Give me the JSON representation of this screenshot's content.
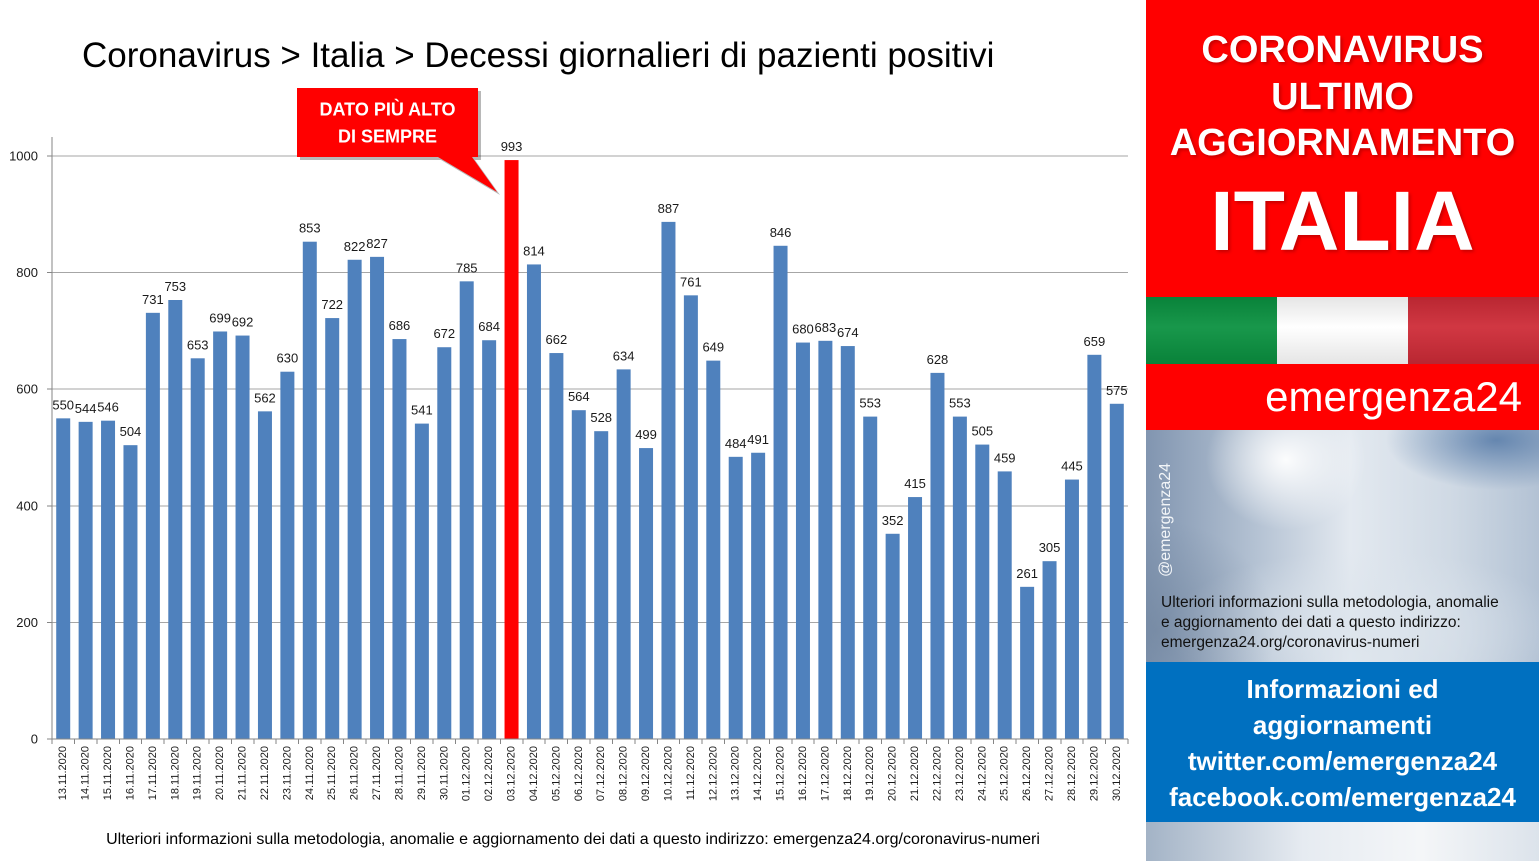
{
  "chart_data": {
    "type": "bar",
    "title": "Coronavirus > Italia > Decessi giornalieri di pazienti positivi",
    "xlabel": "",
    "ylabel": "",
    "categories": [
      "13.11.2020",
      "14.11.2020",
      "15.11.2020",
      "16.11.2020",
      "17.11.2020",
      "18.11.2020",
      "19.11.2020",
      "20.11.2020",
      "21.11.2020",
      "22.11.2020",
      "23.11.2020",
      "24.11.2020",
      "25.11.2020",
      "26.11.2020",
      "27.11.2020",
      "28.11.2020",
      "29.11.2020",
      "30.11.2020",
      "01.12.2020",
      "02.12.2020",
      "03.12.2020",
      "04.12.2020",
      "05.12.2020",
      "06.12.2020",
      "07.12.2020",
      "08.12.2020",
      "09.12.2020",
      "10.12.2020",
      "11.12.2020",
      "12.12.2020",
      "13.12.2020",
      "14.12.2020",
      "15.12.2020",
      "16.12.2020",
      "17.12.2020",
      "18.12.2020",
      "19.12.2020",
      "20.12.2020",
      "21.12.2020",
      "22.12.2020",
      "23.12.2020",
      "24.12.2020",
      "25.12.2020",
      "26.12.2020",
      "27.12.2020",
      "28.12.2020",
      "29.12.2020",
      "30.12.2020"
    ],
    "values": [
      550,
      544,
      546,
      504,
      731,
      753,
      653,
      699,
      692,
      562,
      630,
      853,
      722,
      822,
      827,
      686,
      541,
      672,
      785,
      684,
      993,
      814,
      662,
      564,
      528,
      634,
      499,
      887,
      761,
      649,
      484,
      491,
      846,
      680,
      683,
      674,
      553,
      352,
      415,
      628,
      553,
      505,
      459,
      261,
      305,
      445,
      659,
      575
    ],
    "bar_colors": [
      "#4F81BD",
      "#4F81BD",
      "#4F81BD",
      "#4F81BD",
      "#4F81BD",
      "#4F81BD",
      "#4F81BD",
      "#4F81BD",
      "#4F81BD",
      "#4F81BD",
      "#4F81BD",
      "#4F81BD",
      "#4F81BD",
      "#4F81BD",
      "#4F81BD",
      "#4F81BD",
      "#4F81BD",
      "#4F81BD",
      "#4F81BD",
      "#4F81BD",
      "#FF0000",
      "#4F81BD",
      "#4F81BD",
      "#4F81BD",
      "#4F81BD",
      "#4F81BD",
      "#4F81BD",
      "#4F81BD",
      "#4F81BD",
      "#4F81BD",
      "#4F81BD",
      "#4F81BD",
      "#4F81BD",
      "#4F81BD",
      "#4F81BD",
      "#4F81BD",
      "#4F81BD",
      "#4F81BD",
      "#4F81BD",
      "#4F81BD",
      "#4F81BD",
      "#4F81BD",
      "#4F81BD",
      "#4F81BD",
      "#4F81BD",
      "#4F81BD",
      "#4F81BD",
      "#4F81BD"
    ],
    "ylim": [
      0,
      1000
    ],
    "yticks": [
      0,
      200,
      400,
      600,
      800,
      1000
    ],
    "grid": true,
    "data_labels": true,
    "annotation": {
      "lines": [
        "DATO PIÙ ALTO",
        "DI SEMPRE"
      ],
      "color": "#FF0000"
    }
  },
  "footer_note": "Ulteriori informazioni sulla metodologia, anomalie e aggiornamento dei dati a questo indirizzo: emergenza24.org/coronavirus-numeri",
  "side_panel": {
    "header_lines": [
      "CORONAVIRUS",
      "ULTIMO",
      "AGGIORNAMENTO"
    ],
    "country": "ITALIA",
    "flag_colors": [
      "#0A9140",
      "#FFFFFF",
      "#CE2B37"
    ],
    "brand": "emergenza24",
    "handle": "@emergenza24",
    "info_lines": [
      "Ulteriori informazioni sulla metodologia, anomalie",
      "e aggiornamento dei dati a questo indirizzo:",
      "emergenza24.org/coronavirus-numeri"
    ],
    "social_lines": [
      "Informazioni ed",
      "aggiornamenti",
      "twitter.com/emergenza24",
      "facebook.com/emergenza24"
    ],
    "colors": {
      "header_bg": "#FF0000",
      "brand_bg": "#FF0000",
      "social_bg": "#0070C0"
    }
  }
}
